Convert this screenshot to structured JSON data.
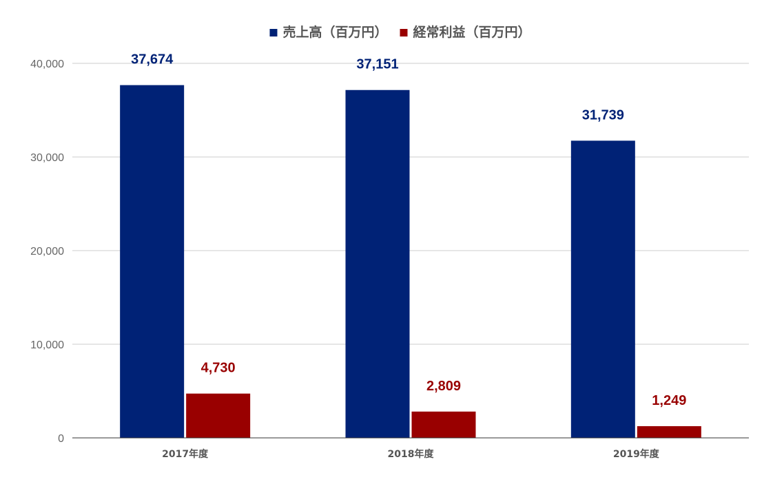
{
  "chart_data": {
    "type": "bar",
    "categories": [
      "2017年度",
      "2018年度",
      "2019年度"
    ],
    "series": [
      {
        "name": "売上高（百万円）",
        "values": [
          37674,
          37151,
          31739
        ],
        "color": "#002276",
        "labels": [
          "37,674",
          "37,151",
          "31,739"
        ]
      },
      {
        "name": "経常利益（百万円）",
        "values": [
          4730,
          2809,
          1249
        ],
        "color": "#990000",
        "labels": [
          "4,730",
          "2,809",
          "1,249"
        ]
      }
    ],
    "ylim": [
      0,
      40000
    ],
    "yticks": [
      0,
      10000,
      20000,
      30000,
      40000
    ],
    "ytick_labels": [
      "0",
      "10,000",
      "20,000",
      "30,000",
      "40,000"
    ],
    "grid": true,
    "legend": "top-center"
  }
}
